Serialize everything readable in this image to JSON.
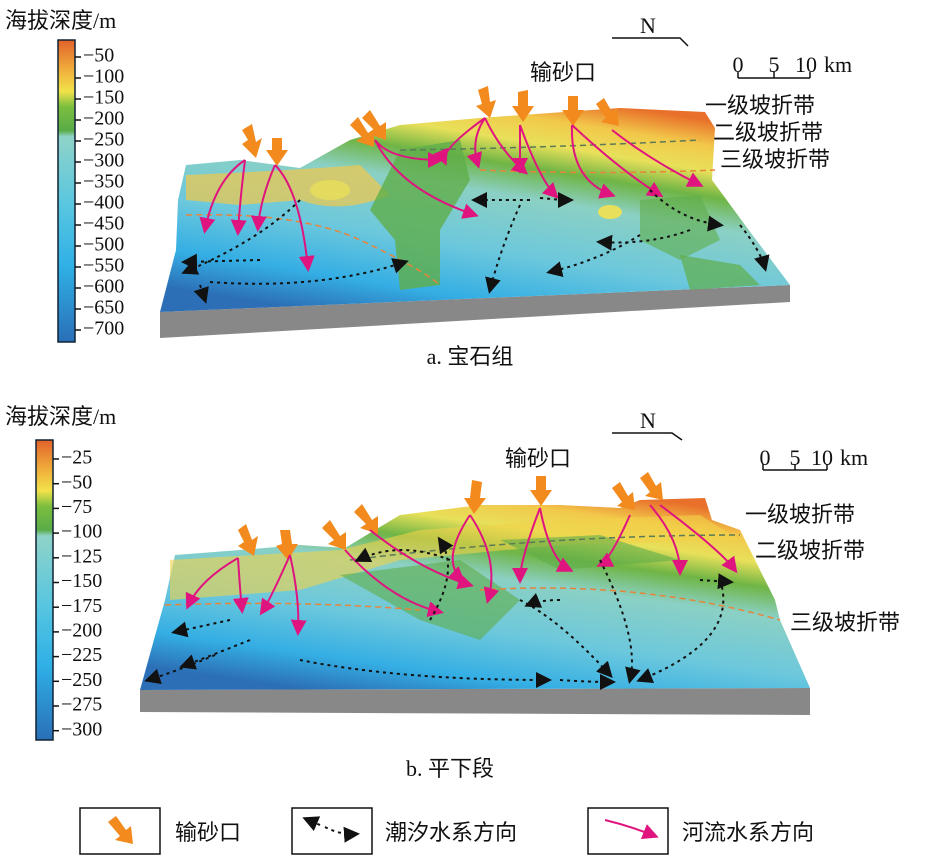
{
  "panel_a": {
    "colorbar_title": "海拔深度/m",
    "colorbar_ticks": [
      "−50",
      "−100",
      "−150",
      "−200",
      "−250",
      "−300",
      "−350",
      "−400",
      "−450",
      "−500",
      "−550",
      "−600",
      "−650",
      "−700"
    ],
    "north": "N",
    "scale": {
      "ticks": [
        "0",
        "5",
        "10"
      ],
      "unit": "km"
    },
    "source_label": "输砂口",
    "slope_breaks": [
      "一级坡折带",
      "二级坡折带",
      "三级坡折带"
    ],
    "caption": "a. 宝石组"
  },
  "panel_b": {
    "colorbar_title": "海拔深度/m",
    "colorbar_ticks": [
      "−25",
      "−50",
      "−75",
      "−100",
      "−125",
      "−150",
      "−175",
      "−200",
      "−225",
      "−250",
      "−275",
      "−300"
    ],
    "north": "N",
    "scale": {
      "ticks": [
        "0",
        "5",
        "10"
      ],
      "unit": "km"
    },
    "source_label": "输砂口",
    "slope_breaks": [
      "一级坡折带",
      "二级坡折带",
      "三级坡折带"
    ],
    "caption": "b. 平下段"
  },
  "legend": {
    "items": [
      "输砂口",
      "潮汐水系方向",
      "河流水系方向"
    ]
  }
}
